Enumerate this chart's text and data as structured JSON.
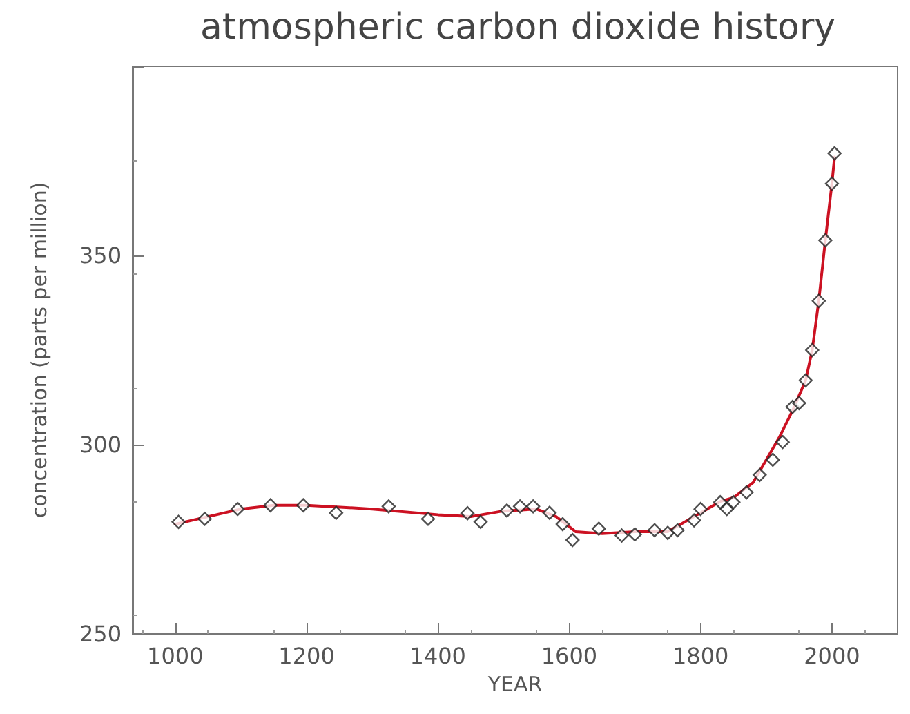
{
  "chart_data": {
    "type": "scatter",
    "title": "atmospheric carbon dioxide history",
    "xlabel": "YEAR",
    "ylabel": "concentration (parts per million)",
    "xlim": [
      935,
      2100
    ],
    "xticks": [
      1000,
      1200,
      1400,
      1600,
      1800,
      2000
    ],
    "ylim": [
      250,
      400
    ],
    "yticks": [
      250,
      300,
      350,
      {
        "value": 400,
        "label": null
      }
    ],
    "grid": false,
    "series": [
      {
        "marker": "diamond",
        "color": "#222222",
        "x": [
          1005,
          1045,
          1095,
          1145,
          1195,
          1245,
          1325,
          1385,
          1445,
          1465,
          1505,
          1525,
          1545,
          1570,
          1590,
          1605,
          1645,
          1680,
          1700,
          1730,
          1750,
          1765,
          1790,
          1800,
          1830,
          1840,
          1850,
          1870,
          1890,
          1910,
          1925,
          1940,
          1950,
          1960,
          1970,
          1980,
          1990,
          2000,
          2004
        ],
        "values": [
          279.6,
          280.4,
          283,
          284,
          284,
          282,
          283.7,
          280.4,
          281.9,
          279.6,
          282.6,
          283.7,
          283.7,
          282,
          279,
          274.8,
          277.8,
          276,
          276.3,
          277.4,
          276.7,
          277.4,
          280,
          283,
          284.8,
          283,
          284.8,
          287.4,
          292,
          296,
          300.7,
          310,
          311,
          317,
          325,
          338,
          354,
          369,
          377
        ]
      },
      {
        "type": "line",
        "marker": "none",
        "line_style": "solid",
        "color": "#cc1122",
        "x": [
          1000,
          1050,
          1100,
          1150,
          1200,
          1300,
          1400,
          1450,
          1500,
          1550,
          1580,
          1610,
          1650,
          1700,
          1750,
          1800,
          1830,
          1850,
          1880,
          1900,
          1920,
          1940,
          1960,
          1970,
          1980,
          1990,
          2000,
          2004
        ],
        "values": [
          279,
          281,
          283,
          284,
          284,
          283,
          281.5,
          281,
          282.5,
          283,
          281,
          277,
          276.5,
          277,
          277,
          282,
          285,
          286,
          290,
          296,
          302,
          309,
          317,
          325,
          338,
          354,
          369,
          376
        ]
      }
    ]
  }
}
